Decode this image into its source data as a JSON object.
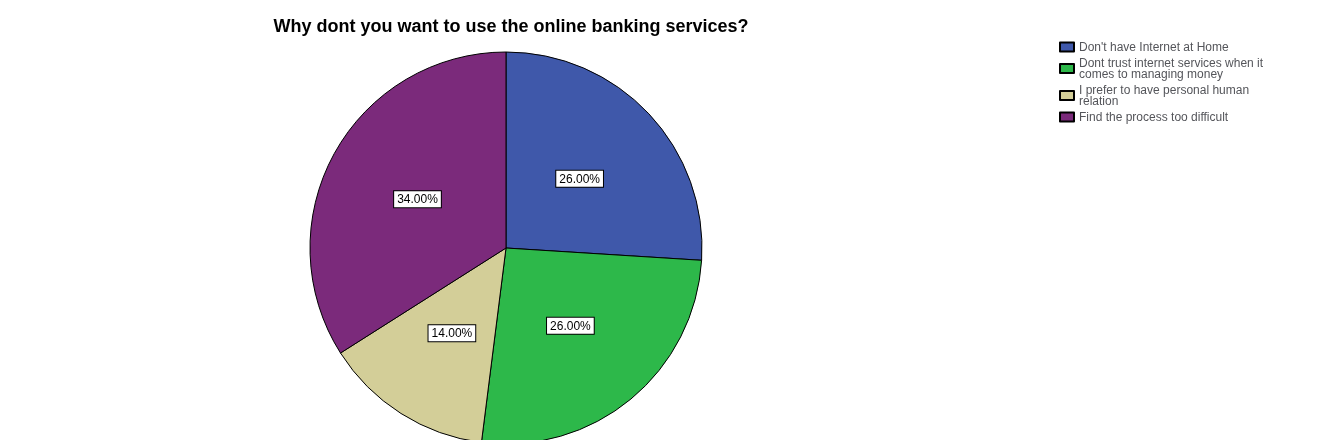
{
  "chart_data": {
    "type": "pie",
    "title": "Why dont you want to use the online banking services?",
    "categories": [
      "Don't have Internet at Home",
      "Dont trust internet services when it comes to managing money",
      "I prefer to have personal human relation",
      "Find the process too difficult"
    ],
    "values": [
      26,
      26,
      14,
      34
    ],
    "colors": [
      "#3f58aa",
      "#2db84a",
      "#d3ce98",
      "#7b2a7b"
    ],
    "value_labels": [
      "26.00%",
      "26.00%",
      "14.00%",
      "34.00%"
    ],
    "legend": "top right"
  }
}
